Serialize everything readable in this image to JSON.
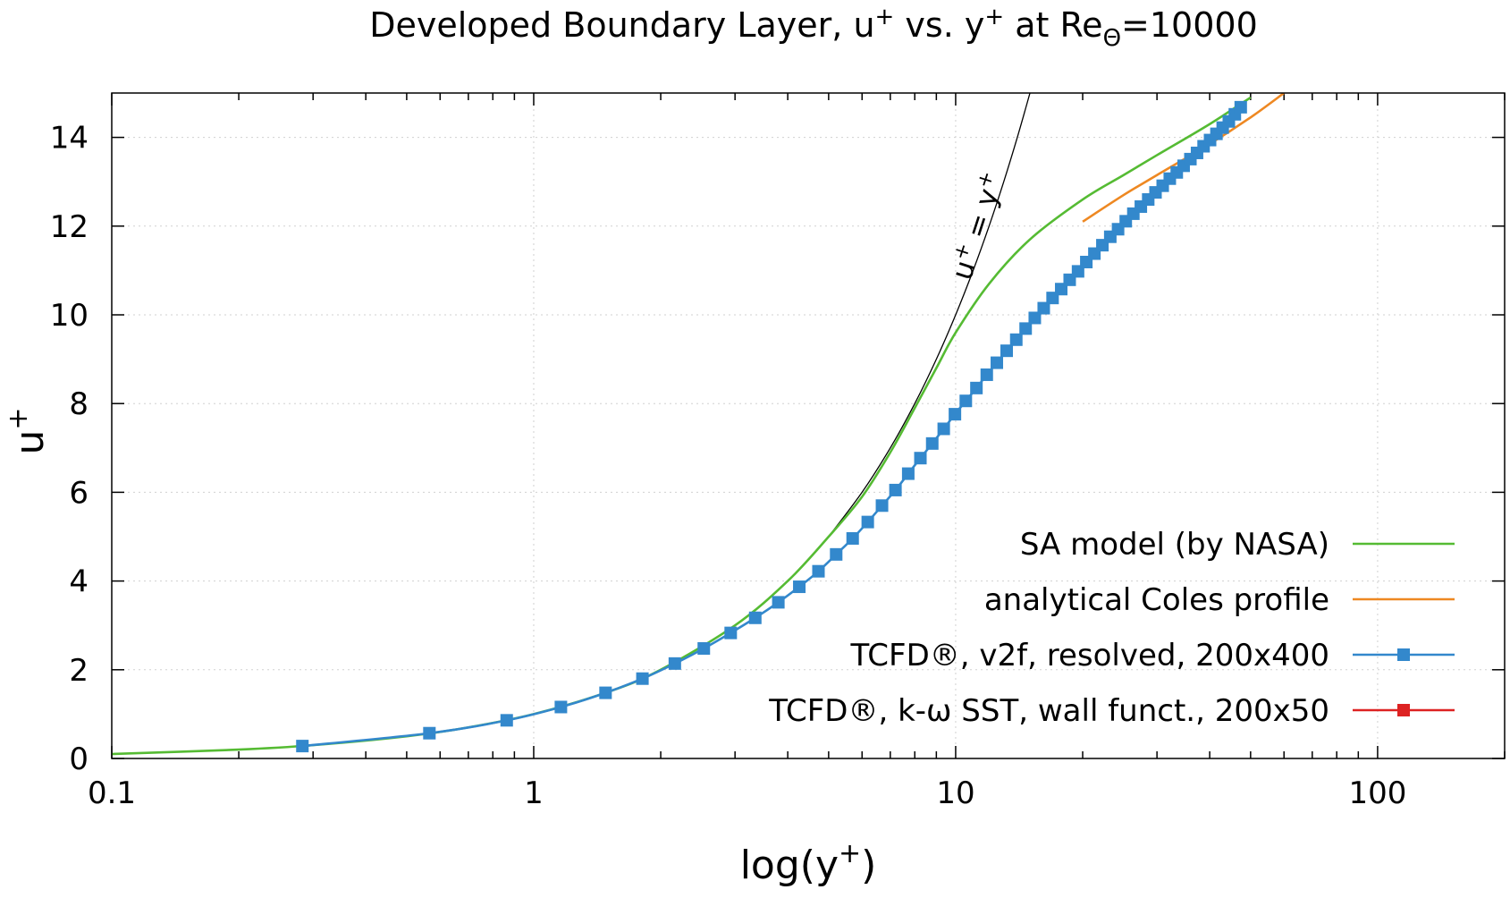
{
  "chart_data": {
    "type": "line",
    "title": "Developed Boundary Layer, u",
    "title_sup": "+",
    "title_mid": " vs. y",
    "title_sup2": "+",
    "title_tail": " at Re",
    "title_sub": "Θ",
    "title_end": "=10000",
    "xlabel": "log(y",
    "xlabel_sup": "+",
    "xlabel_end": ")",
    "ylabel": "u",
    "ylabel_sup": "+",
    "xscale": "log",
    "xlim": [
      0.1,
      200
    ],
    "ylim": [
      0,
      15
    ],
    "xticks": [
      0.1,
      1,
      10,
      100
    ],
    "xtick_labels": [
      "0.1",
      "1",
      "10",
      "100"
    ],
    "yticks": [
      0,
      2,
      4,
      6,
      8,
      10,
      12,
      14
    ],
    "ytick_labels": [
      "0",
      "2",
      "4",
      "6",
      "8",
      "10",
      "12",
      "14"
    ],
    "grid": true,
    "legend_position": "bottom-right",
    "annotation": {
      "text": "u",
      "sup1": "+",
      "mid": " = y",
      "sup2": "+"
    },
    "series": [
      {
        "name": "u+ = y+",
        "color": "#000000",
        "style": "line",
        "in_legend": false,
        "x": [
          5,
          6,
          7,
          8,
          9,
          10,
          11,
          12,
          13,
          14,
          15
        ],
        "y": [
          5,
          6,
          7,
          8,
          9,
          10,
          11,
          12,
          13,
          14,
          15
        ]
      },
      {
        "name": "SA model (by NASA)",
        "color": "#55bb33",
        "style": "line",
        "in_legend": true,
        "x": [
          0.1,
          0.2,
          0.3,
          0.5,
          0.7,
          1.0,
          1.5,
          2.0,
          3.0,
          4.0,
          5.0,
          6.0,
          7.0,
          8.0,
          9.0,
          10.0,
          12.0,
          15.0,
          20.0,
          25.0,
          30.0,
          40.0,
          50.0
        ],
        "y": [
          0.1,
          0.2,
          0.3,
          0.5,
          0.7,
          1.0,
          1.5,
          2.0,
          3.0,
          4.0,
          5.0,
          5.9,
          6.9,
          7.9,
          8.8,
          9.6,
          10.7,
          11.7,
          12.6,
          13.15,
          13.6,
          14.3,
          14.9
        ]
      },
      {
        "name": "analytical Coles profile",
        "color": "#ee8822",
        "style": "line",
        "in_legend": true,
        "x": [
          20.0,
          25.0,
          30.0,
          40.0,
          50.0,
          60.0
        ],
        "y": [
          12.1,
          12.7,
          13.15,
          13.85,
          14.45,
          15.0
        ]
      },
      {
        "name": "TCFD®, v2f, resolved, 200x400",
        "color": "#3388cc",
        "style": "line+square",
        "in_legend": true,
        "x": [
          0.283,
          0.566,
          0.863,
          1.16,
          1.48,
          1.81,
          2.16,
          2.53,
          2.93,
          3.35,
          3.8,
          4.26,
          4.73,
          5.21,
          5.7,
          6.19,
          6.69,
          7.2,
          7.72,
          8.25,
          8.8,
          9.37,
          9.96,
          10.57,
          11.2,
          11.85,
          12.52,
          13.21,
          13.92,
          14.65,
          15.4,
          16.17,
          16.97,
          17.79,
          18.63,
          19.5,
          20.4,
          21.32,
          22.27,
          23.25,
          24.26,
          25.3,
          26.37,
          27.47,
          28.6,
          29.76,
          30.95,
          32.17,
          33.42,
          34.7,
          36.0,
          37.33,
          38.69,
          40.08,
          41.5,
          42.94,
          44.4,
          45.88,
          47.38
        ],
        "y": [
          0.28,
          0.57,
          0.86,
          1.16,
          1.48,
          1.8,
          2.14,
          2.48,
          2.83,
          3.17,
          3.52,
          3.87,
          4.22,
          4.6,
          4.96,
          5.33,
          5.7,
          6.05,
          6.42,
          6.77,
          7.1,
          7.43,
          7.76,
          8.06,
          8.35,
          8.65,
          8.92,
          9.19,
          9.44,
          9.69,
          9.93,
          10.15,
          10.38,
          10.58,
          10.79,
          10.98,
          11.19,
          11.38,
          11.57,
          11.76,
          11.93,
          12.11,
          12.28,
          12.44,
          12.6,
          12.76,
          12.91,
          13.07,
          13.21,
          13.36,
          13.51,
          13.65,
          13.8,
          13.94,
          14.08,
          14.22,
          14.36,
          14.52,
          14.68
        ]
      },
      {
        "name": "TCFD®, k-ω SST, wall funct., 200x50",
        "color": "#dd2222",
        "style": "line+square",
        "in_legend": true,
        "x": [],
        "y": []
      }
    ]
  }
}
